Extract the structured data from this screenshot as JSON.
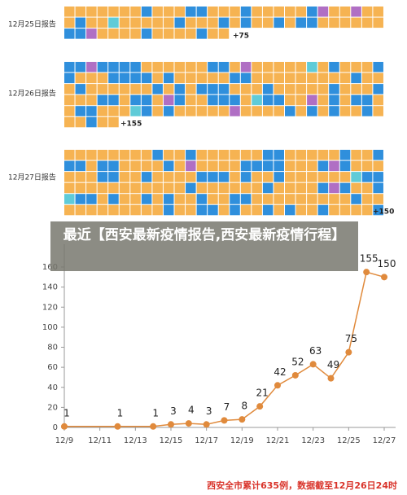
{
  "reports": [
    {
      "label": "12月25日报告",
      "added": "+75"
    },
    {
      "label": "12月26日报告",
      "added": "+155"
    },
    {
      "label": "12月27日报告",
      "added": "+150"
    }
  ],
  "banner": "最近【西安最新疫情报告,西安最新疫情行程】",
  "footer": "西安全市累计635例，数据截至12月26日24时",
  "chart_data": {
    "type": "line",
    "color": "#e08a3c",
    "x": [
      9,
      12,
      14,
      15,
      16,
      17,
      18,
      19,
      20,
      21,
      22,
      23,
      24,
      25,
      26,
      27
    ],
    "values": [
      1,
      1,
      1,
      3,
      4,
      3,
      7,
      8,
      21,
      42,
      52,
      63,
      49,
      75,
      155,
      150
    ],
    "xlim": [
      9,
      27
    ],
    "xticks": [
      {
        "value": 9,
        "label": "12/9"
      },
      {
        "value": 11,
        "label": "12/11"
      },
      {
        "value": 13,
        "label": "12/13"
      },
      {
        "value": 15,
        "label": "12/15"
      },
      {
        "value": 17,
        "label": "12/17"
      },
      {
        "value": 19,
        "label": "12/19"
      },
      {
        "value": 21,
        "label": "12/21"
      },
      {
        "value": 23,
        "label": "12/23"
      },
      {
        "value": 25,
        "label": "12/25"
      },
      {
        "value": 27,
        "label": "12/27"
      }
    ],
    "ylim": [
      0,
      160
    ],
    "yticks": [
      0,
      20,
      40,
      60,
      80,
      100,
      120,
      140,
      160
    ]
  }
}
